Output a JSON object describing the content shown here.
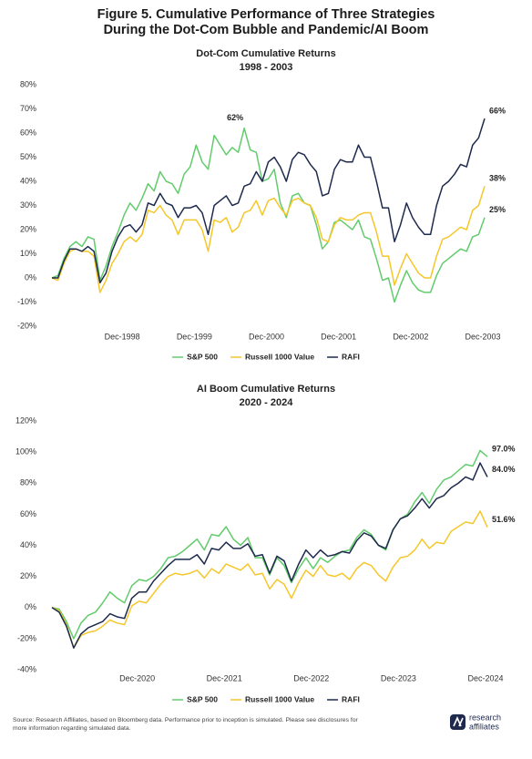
{
  "figure_title": [
    "Figure 5. Cumulative Performance of Three Strategies",
    "During the Dot-Com Bubble and Pandemic/AI Boom"
  ],
  "source": [
    "Source: Research Affiliates, based on Bloomberg data. Performance prior to inception is simulated. Please see disclosures for",
    "more information regarding simulated data."
  ],
  "logo": [
    "research",
    "affiliates"
  ],
  "chart_data": [
    {
      "type": "line",
      "title": "Dot-Com Cumulative Returns",
      "subtitle": "1998 - 2003",
      "legend": "bottom",
      "grid": false,
      "categories": [
        null,
        null,
        null,
        null,
        null,
        null,
        null,
        null,
        null,
        null,
        null,
        null,
        "Dec-1998",
        null,
        null,
        null,
        null,
        null,
        null,
        null,
        null,
        null,
        null,
        null,
        "Dec-1999",
        null,
        null,
        null,
        null,
        null,
        null,
        null,
        null,
        null,
        null,
        null,
        "Dec-2000",
        null,
        null,
        null,
        null,
        null,
        null,
        null,
        null,
        null,
        null,
        null,
        "Dec-2001",
        null,
        null,
        null,
        null,
        null,
        null,
        null,
        null,
        null,
        null,
        null,
        "Dec-2002",
        null,
        null,
        null,
        null,
        null,
        null,
        null,
        null,
        null,
        null,
        null,
        "Dec-2003"
      ],
      "ylim": [
        -20,
        80
      ],
      "yticks": [
        {
          "value": -20,
          "label": "-20%"
        },
        {
          "value": -10,
          "label": "-10%"
        },
        {
          "value": 0,
          "label": "0%"
        },
        {
          "value": 10,
          "label": "10%"
        },
        {
          "value": 20,
          "label": "20%"
        },
        {
          "value": 30,
          "label": "30%"
        },
        {
          "value": 40,
          "label": "40%"
        },
        {
          "value": 50,
          "label": "50%"
        },
        {
          "value": 60,
          "label": "60%"
        },
        {
          "value": 70,
          "label": "70%"
        },
        {
          "value": 80,
          "label": "80%"
        }
      ],
      "series": [
        {
          "name": "S&P 500",
          "color": "#62cc6c",
          "values": [
            0,
            1,
            8,
            13,
            15,
            13,
            17,
            16,
            -1,
            5,
            13,
            19,
            26,
            31,
            28,
            33,
            39,
            36,
            44,
            40,
            39,
            35,
            43,
            46,
            55,
            48,
            45,
            59,
            55,
            51,
            54,
            52,
            62,
            53,
            52,
            40,
            41,
            45,
            31,
            25,
            34,
            35,
            31,
            30,
            22,
            12,
            15,
            23,
            24,
            22,
            20,
            24,
            17,
            16,
            8,
            -1,
            0,
            -10,
            -3,
            3,
            -2,
            -5,
            -6,
            -6,
            1,
            6,
            8,
            10,
            12,
            11,
            17,
            18,
            25
          ],
          "value_labels": [
            null,
            null,
            null,
            null,
            null,
            null,
            null,
            null,
            null,
            null,
            null,
            null,
            null,
            null,
            null,
            null,
            null,
            null,
            null,
            null,
            null,
            null,
            null,
            null,
            null,
            null,
            null,
            null,
            null,
            null,
            null,
            null,
            "62%",
            null,
            null,
            null,
            null,
            null,
            null,
            null,
            null,
            null,
            null,
            null,
            null,
            null,
            null,
            null,
            null,
            null,
            null,
            null,
            null,
            null,
            null,
            null,
            null,
            null,
            null,
            null,
            null,
            null,
            null,
            null,
            null,
            null,
            null,
            null,
            null,
            null,
            null,
            null,
            "25%"
          ]
        },
        {
          "name": "Russell 1000 Value",
          "color": "#f5c72a",
          "values": [
            0,
            -1,
            6,
            11,
            12,
            11,
            11,
            9,
            -6,
            -1,
            6,
            10,
            15,
            17,
            15,
            18,
            28,
            27,
            30,
            26,
            24,
            18,
            24,
            24,
            24,
            20,
            11,
            24,
            23,
            25,
            19,
            21,
            27,
            28,
            32,
            26,
            32,
            33,
            29,
            26,
            32,
            33,
            31,
            30,
            25,
            16,
            15,
            22,
            25,
            24,
            24,
            26,
            27,
            27,
            19,
            9,
            9,
            -3,
            4,
            10,
            6,
            2,
            0,
            0,
            9,
            16,
            17,
            19,
            21,
            20,
            28,
            30,
            38
          ],
          "value_labels": [
            null,
            null,
            null,
            null,
            null,
            null,
            null,
            null,
            null,
            null,
            null,
            null,
            null,
            null,
            null,
            null,
            null,
            null,
            null,
            null,
            null,
            null,
            null,
            null,
            null,
            null,
            null,
            null,
            null,
            null,
            null,
            null,
            null,
            null,
            null,
            null,
            null,
            null,
            null,
            null,
            null,
            null,
            null,
            null,
            null,
            null,
            null,
            null,
            null,
            null,
            null,
            null,
            null,
            null,
            null,
            null,
            null,
            null,
            null,
            null,
            null,
            null,
            null,
            null,
            null,
            null,
            null,
            null,
            null,
            null,
            null,
            null,
            "38%"
          ]
        },
        {
          "name": "RAFI",
          "color": "#1e2a4d",
          "values": [
            0,
            0,
            7,
            12,
            12,
            11,
            13,
            11,
            -2,
            2,
            11,
            17,
            21,
            22,
            19,
            22,
            31,
            30,
            35,
            31,
            30,
            25,
            29,
            29,
            30,
            27,
            18,
            30,
            32,
            34,
            30,
            31,
            38,
            39,
            44,
            40,
            48,
            50,
            46,
            40,
            49,
            52,
            51,
            47,
            44,
            34,
            35,
            45,
            49,
            48,
            48,
            55,
            50,
            50,
            40,
            29,
            29,
            15,
            22,
            31,
            25,
            21,
            18,
            18,
            30,
            38,
            40,
            43,
            47,
            46,
            55,
            58,
            66
          ],
          "value_labels": [
            null,
            null,
            null,
            null,
            null,
            null,
            null,
            null,
            null,
            null,
            null,
            null,
            null,
            null,
            null,
            null,
            null,
            null,
            null,
            null,
            null,
            null,
            null,
            null,
            null,
            null,
            null,
            null,
            null,
            null,
            null,
            null,
            null,
            null,
            null,
            null,
            null,
            null,
            null,
            null,
            null,
            null,
            null,
            null,
            null,
            null,
            null,
            null,
            null,
            null,
            null,
            null,
            null,
            null,
            null,
            null,
            null,
            null,
            null,
            null,
            null,
            null,
            null,
            null,
            null,
            null,
            null,
            null,
            null,
            null,
            null,
            null,
            "66%"
          ]
        }
      ]
    },
    {
      "type": "line",
      "title": "AI Boom Cumulative Returns",
      "subtitle": "2020 - 2024",
      "legend": "bottom",
      "grid": false,
      "categories": [
        null,
        null,
        null,
        null,
        null,
        null,
        null,
        null,
        null,
        null,
        null,
        null,
        "Dec-2020",
        null,
        null,
        null,
        null,
        null,
        null,
        null,
        null,
        null,
        null,
        null,
        "Dec-2021",
        null,
        null,
        null,
        null,
        null,
        null,
        null,
        null,
        null,
        null,
        null,
        "Dec-2022",
        null,
        null,
        null,
        null,
        null,
        null,
        null,
        null,
        null,
        null,
        null,
        "Dec-2023",
        null,
        null,
        null,
        null,
        null,
        null,
        null,
        null,
        null,
        null,
        null,
        "Dec-2024"
      ],
      "ylim": [
        -40,
        120
      ],
      "yticks": [
        {
          "value": -40,
          "label": "-40%"
        },
        {
          "value": -20,
          "label": "-20%"
        },
        {
          "value": 0,
          "label": "0%"
        },
        {
          "value": 20,
          "label": "20%"
        },
        {
          "value": 40,
          "label": "40%"
        },
        {
          "value": 60,
          "label": "60%"
        },
        {
          "value": 80,
          "label": "80%"
        },
        {
          "value": 100,
          "label": "100%"
        },
        {
          "value": 120,
          "label": "120%"
        }
      ],
      "series": [
        {
          "name": "S&P 500",
          "color": "#62cc6c",
          "values": [
            0,
            -1,
            -9,
            -20,
            -10,
            -5,
            -3,
            3,
            10,
            6,
            3,
            14,
            18,
            17,
            20,
            25,
            32,
            33,
            36,
            40,
            44,
            37,
            47,
            46,
            52,
            44,
            40,
            45,
            32,
            32,
            21,
            32,
            27,
            16,
            25,
            32,
            25,
            32,
            29,
            33,
            36,
            37,
            45,
            50,
            47,
            40,
            37,
            50,
            57,
            60,
            68,
            74,
            67,
            76,
            82,
            84,
            88,
            92,
            91,
            101,
            97.0
          ],
          "value_labels": [
            null,
            null,
            null,
            null,
            null,
            null,
            null,
            null,
            null,
            null,
            null,
            null,
            null,
            null,
            null,
            null,
            null,
            null,
            null,
            null,
            null,
            null,
            null,
            null,
            null,
            null,
            null,
            null,
            null,
            null,
            null,
            null,
            null,
            null,
            null,
            null,
            null,
            null,
            null,
            null,
            null,
            null,
            null,
            null,
            null,
            null,
            null,
            null,
            null,
            null,
            null,
            null,
            null,
            null,
            null,
            null,
            null,
            null,
            null,
            null,
            "97.0%"
          ]
        },
        {
          "name": "Russell 1000 Value",
          "color": "#f5c72a",
          "values": [
            0,
            -2,
            -11,
            -26,
            -18,
            -16,
            -15,
            -12,
            -8,
            -10,
            -11,
            1,
            4,
            3,
            9,
            15,
            20,
            22,
            21,
            22,
            24,
            19,
            25,
            22,
            28,
            26,
            24,
            28,
            21,
            22,
            12,
            18,
            15,
            6,
            16,
            24,
            20,
            27,
            21,
            20,
            22,
            18,
            25,
            29,
            27,
            21,
            17,
            26,
            32,
            33,
            37,
            44,
            38,
            42,
            41,
            49,
            52,
            55,
            54,
            62,
            51.6
          ],
          "value_labels": [
            null,
            null,
            null,
            null,
            null,
            null,
            null,
            null,
            null,
            null,
            null,
            null,
            null,
            null,
            null,
            null,
            null,
            null,
            null,
            null,
            null,
            null,
            null,
            null,
            null,
            null,
            null,
            null,
            null,
            null,
            null,
            null,
            null,
            null,
            null,
            null,
            null,
            null,
            null,
            null,
            null,
            null,
            null,
            null,
            null,
            null,
            null,
            null,
            null,
            null,
            null,
            null,
            null,
            null,
            null,
            null,
            null,
            null,
            null,
            null,
            "51.6%"
          ]
        },
        {
          "name": "RAFI",
          "color": "#1e2a4d",
          "values": [
            0,
            -3,
            -12,
            -26,
            -17,
            -13,
            -11,
            -9,
            -4,
            -6,
            -7,
            6,
            10,
            10,
            17,
            22,
            27,
            31,
            31,
            31,
            34,
            28,
            38,
            37,
            42,
            38,
            38,
            41,
            33,
            34,
            22,
            33,
            30,
            17,
            28,
            37,
            32,
            37,
            33,
            34,
            36,
            35,
            43,
            48,
            46,
            40,
            38,
            50,
            57,
            59,
            64,
            70,
            64,
            70,
            72,
            77,
            80,
            84,
            82,
            93,
            84.0
          ],
          "value_labels": [
            null,
            null,
            null,
            null,
            null,
            null,
            null,
            null,
            null,
            null,
            null,
            null,
            null,
            null,
            null,
            null,
            null,
            null,
            null,
            null,
            null,
            null,
            null,
            null,
            null,
            null,
            null,
            null,
            null,
            null,
            null,
            null,
            null,
            null,
            null,
            null,
            null,
            null,
            null,
            null,
            null,
            null,
            null,
            null,
            null,
            null,
            null,
            null,
            null,
            null,
            null,
            null,
            null,
            null,
            null,
            null,
            null,
            null,
            null,
            null,
            "84.0%"
          ]
        }
      ]
    }
  ]
}
